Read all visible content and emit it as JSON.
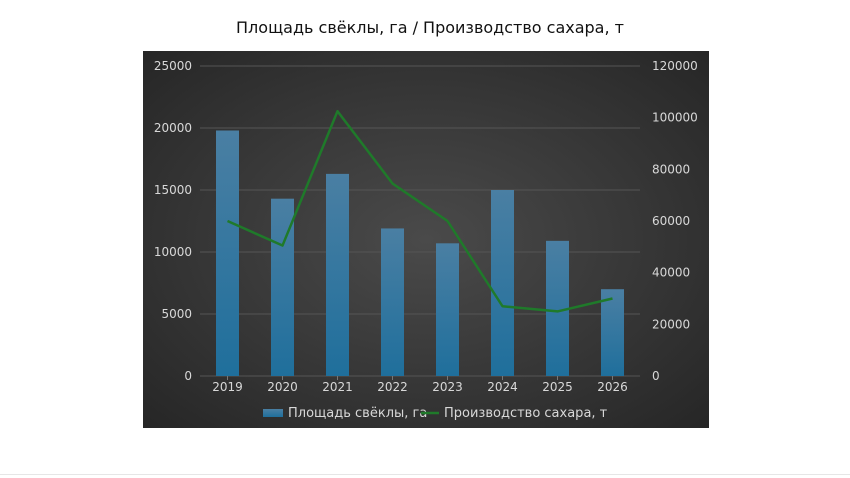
{
  "page": {
    "title": "Площадь свёклы, га / Производство сахара, т"
  },
  "colors": {
    "bar": "#1f6f9c",
    "line": "#1f7a2a",
    "panel": "#3a3a3a",
    "text": "#d8d8d8"
  },
  "chart_data": {
    "type": "bar",
    "title": "Площадь свёклы, га / Производство сахара, т",
    "categories": [
      "2019",
      "2020",
      "2021",
      "2022",
      "2023",
      "2024",
      "2025",
      "2026"
    ],
    "series": [
      {
        "name": "Площадь свёклы, га",
        "type": "bar",
        "axis": "left",
        "values": [
          19800,
          14300,
          16300,
          11900,
          10700,
          15000,
          10900,
          7000
        ]
      },
      {
        "name": "Производство сахара, т",
        "type": "line",
        "axis": "right",
        "values": [
          60000,
          50500,
          102500,
          74500,
          60000,
          27000,
          25000,
          30000
        ]
      }
    ],
    "y_left": {
      "min": 0,
      "max": 25000,
      "ticks": [
        "0",
        "5000",
        "10000",
        "15000",
        "20000",
        "25000"
      ]
    },
    "y_right": {
      "min": 0,
      "max": 120000,
      "ticks": [
        "0",
        "20000",
        "40000",
        "60000",
        "80000",
        "100000",
        "120000"
      ]
    },
    "grid": true,
    "legend": "bottom"
  }
}
